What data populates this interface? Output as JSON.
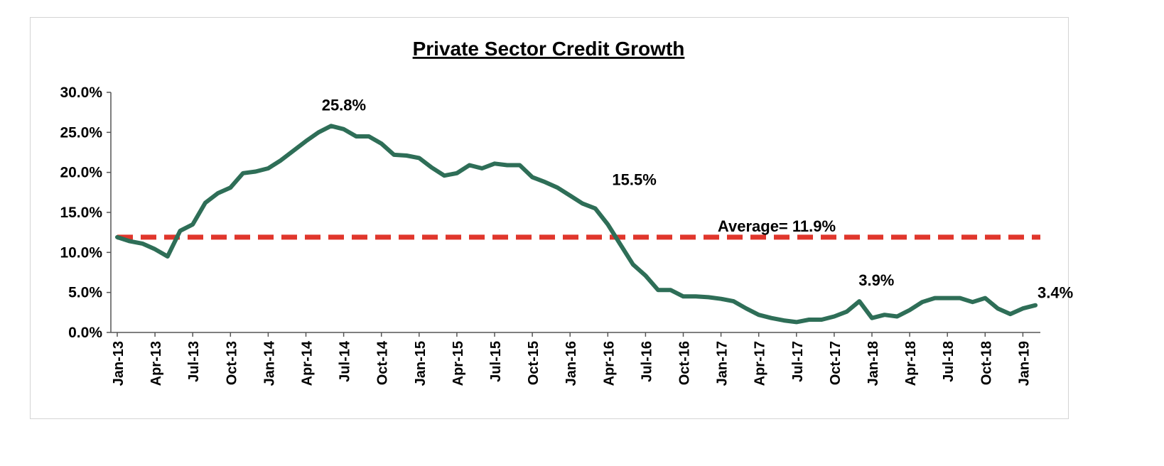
{
  "chart_data": {
    "type": "line",
    "title": "Private Sector Credit Growth",
    "xlabel": "",
    "ylabel": "",
    "ylim": [
      0,
      30
    ],
    "y_tick_labels": [
      "0.0%",
      "5.0%",
      "10.0%",
      "15.0%",
      "20.0%",
      "25.0%",
      "30.0%"
    ],
    "y_tick_values": [
      0,
      5,
      10,
      15,
      20,
      25,
      30
    ],
    "x_tick_labels": [
      "Jan-13",
      "Apr-13",
      "Jul-13",
      "Oct-13",
      "Jan-14",
      "Apr-14",
      "Jul-14",
      "Oct-14",
      "Jan-15",
      "Apr-15",
      "Jul-15",
      "Oct-15",
      "Jan-16",
      "Apr-16",
      "Jul-16",
      "Oct-16",
      "Jan-17",
      "Apr-17",
      "Jul-17",
      "Oct-17",
      "Jan-18",
      "Apr-18",
      "Jul-18",
      "Oct-18",
      "Jan-19"
    ],
    "grid": false,
    "legend": "none",
    "series": [
      {
        "color": "#2e6e57",
        "x": [
          "Jan-13",
          "Feb-13",
          "Mar-13",
          "Apr-13",
          "May-13",
          "Jun-13",
          "Jul-13",
          "Aug-13",
          "Sep-13",
          "Oct-13",
          "Nov-13",
          "Dec-13",
          "Jan-14",
          "Feb-14",
          "Mar-14",
          "Apr-14",
          "May-14",
          "Jun-14",
          "Jul-14",
          "Aug-14",
          "Sep-14",
          "Oct-14",
          "Nov-14",
          "Dec-14",
          "Jan-15",
          "Feb-15",
          "Mar-15",
          "Apr-15",
          "May-15",
          "Jun-15",
          "Jul-15",
          "Aug-15",
          "Sep-15",
          "Oct-15",
          "Nov-15",
          "Dec-15",
          "Jan-16",
          "Feb-16",
          "Mar-16",
          "Apr-16",
          "May-16",
          "Jun-16",
          "Jul-16",
          "Aug-16",
          "Sep-16",
          "Oct-16",
          "Nov-16",
          "Dec-16",
          "Jan-17",
          "Feb-17",
          "Mar-17",
          "Apr-17",
          "May-17",
          "Jun-17",
          "Jul-17",
          "Aug-17",
          "Sep-17",
          "Oct-17",
          "Nov-17",
          "Dec-17",
          "Jan-18",
          "Feb-18",
          "Mar-18",
          "Apr-18",
          "May-18",
          "Jun-18",
          "Jul-18",
          "Aug-18",
          "Sep-18",
          "Oct-18",
          "Nov-18",
          "Dec-18",
          "Jan-19",
          "Feb-19"
        ],
        "values": [
          11.9,
          11.4,
          11.1,
          10.4,
          9.5,
          12.7,
          13.5,
          16.2,
          17.4,
          18.1,
          19.9,
          20.1,
          20.5,
          21.5,
          22.7,
          23.9,
          25.0,
          25.8,
          25.4,
          24.5,
          24.5,
          23.6,
          22.2,
          22.1,
          21.8,
          20.6,
          19.6,
          19.9,
          20.9,
          20.5,
          21.1,
          20.9,
          20.9,
          19.4,
          18.8,
          18.1,
          17.1,
          16.1,
          15.5,
          13.5,
          11.0,
          8.5,
          7.1,
          5.3,
          5.3,
          4.5,
          4.5,
          4.4,
          4.2,
          3.9,
          3.0,
          2.2,
          1.8,
          1.5,
          1.3,
          1.6,
          1.6,
          2.0,
          2.6,
          3.9,
          1.8,
          2.2,
          2.0,
          2.8,
          3.8,
          4.3,
          4.3,
          4.3,
          3.8,
          4.3,
          3.0,
          2.3,
          3.0,
          3.4
        ]
      }
    ],
    "reference_line": {
      "value": 11.9,
      "label": "Average= 11.9%",
      "color": "#e0362c"
    },
    "annotations": [
      {
        "x": "Jun-14",
        "y": 25.8,
        "text": "25.8%"
      },
      {
        "x": "Mar-16",
        "y": 15.5,
        "text": "15.5%"
      },
      {
        "x": "Dec-17",
        "y": 3.9,
        "text": "3.9%"
      },
      {
        "x": "Feb-19",
        "y": 3.4,
        "text": "3.4%"
      }
    ]
  }
}
